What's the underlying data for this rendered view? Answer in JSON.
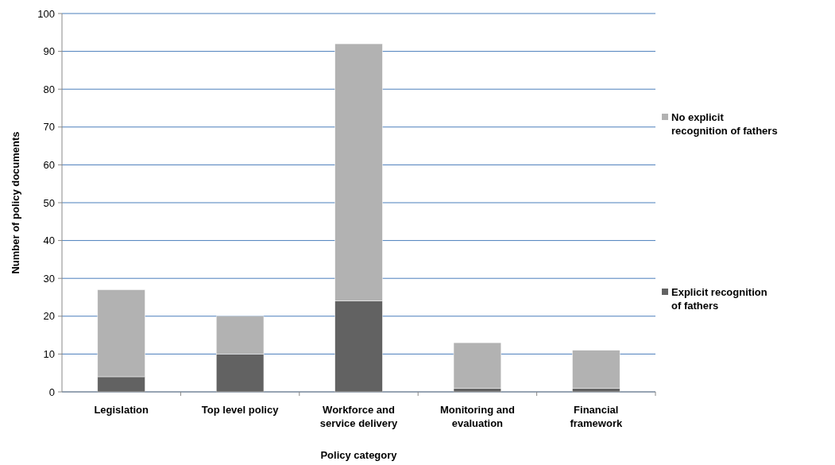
{
  "chart_data": {
    "type": "bar",
    "stacked": true,
    "xlabel": "Policy category",
    "ylabel": "Number of policy documents",
    "categories": [
      "Legislation",
      "Top level policy",
      "Workforce and service delivery",
      "Monitoring and evaluation",
      "Financial framework"
    ],
    "series": [
      {
        "name": "Explicit recognition of fathers",
        "color": "#626262",
        "values": [
          4,
          10,
          24,
          1,
          1
        ]
      },
      {
        "name": "No explicit recognition of fathers",
        "color": "#b2b2b2",
        "values": [
          23,
          10,
          68,
          12,
          10
        ]
      }
    ],
    "ylim": [
      0,
      100
    ],
    "yticks": [
      0,
      10,
      20,
      30,
      40,
      50,
      60,
      70,
      80,
      90,
      100
    ],
    "grid": "y",
    "legend": "right"
  }
}
